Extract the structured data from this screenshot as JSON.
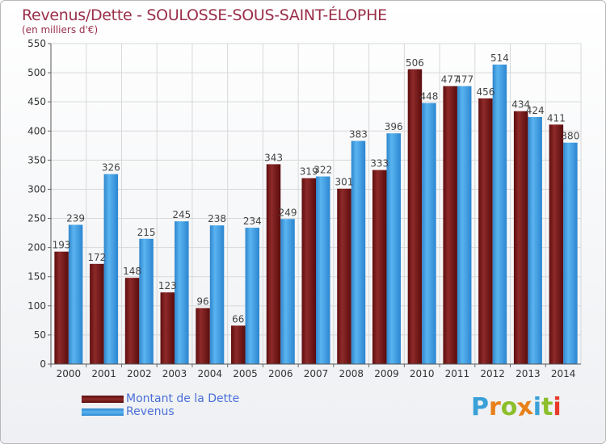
{
  "chart_data": {
    "type": "bar",
    "title": "Revenus/Dette - SOULOSSE-SOUS-SAINT-ÉLOPHE",
    "subtitle": "(en milliers d'€)",
    "categories": [
      "2000",
      "2001",
      "2002",
      "2003",
      "2004",
      "2005",
      "2006",
      "2007",
      "2008",
      "2009",
      "2010",
      "2011",
      "2012",
      "2013",
      "2014"
    ],
    "series": [
      {
        "name": "Montant de la Dette",
        "color": "#7a1a1a",
        "values": [
          193,
          172,
          148,
          123,
          96,
          66,
          343,
          319,
          301,
          333,
          506,
          477,
          456,
          434,
          411
        ]
      },
      {
        "name": "Revenus",
        "color": "#3b9be0",
        "values": [
          239,
          326,
          215,
          245,
          238,
          234,
          249,
          322,
          383,
          396,
          448,
          477,
          514,
          424,
          380
        ]
      }
    ],
    "ylim": [
      0,
      550
    ],
    "yticks": [
      0,
      50,
      100,
      150,
      200,
      250,
      300,
      350,
      400,
      450,
      500,
      550
    ],
    "grid": true,
    "legend_position": "bottom-left"
  },
  "logo": {
    "text": "Proxiti",
    "letters": [
      {
        "ch": "P",
        "color": "#3aa0d8"
      },
      {
        "ch": "r",
        "color": "#e8801a"
      },
      {
        "ch": "o",
        "color": "#8cbf2a"
      },
      {
        "ch": "x",
        "color": "#e8801a"
      },
      {
        "ch": "i",
        "color": "#3aa0d8"
      },
      {
        "ch": "t",
        "color": "#8cbf2a"
      },
      {
        "ch": "i",
        "color": "#e83a2a"
      }
    ]
  }
}
